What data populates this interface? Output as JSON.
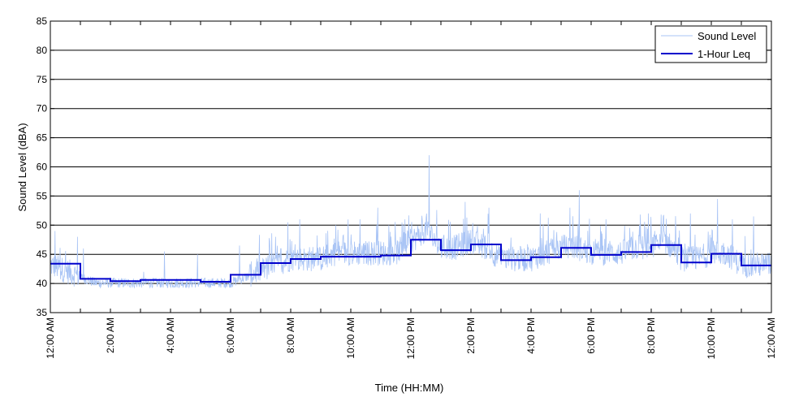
{
  "chart_data": {
    "type": "line",
    "title": "",
    "xlabel": "Time (HH:MM)",
    "ylabel": "Sound Level (dBA)",
    "ylim": [
      35,
      85
    ],
    "yticks": [
      35,
      40,
      45,
      50,
      55,
      60,
      65,
      70,
      75,
      80,
      85
    ],
    "xlim_hours": [
      0,
      24
    ],
    "xticks": [
      {
        "hour": 0,
        "label": "12:00 AM"
      },
      {
        "hour": 2,
        "label": "2:00 AM"
      },
      {
        "hour": 4,
        "label": "4:00 AM"
      },
      {
        "hour": 6,
        "label": "6:00 AM"
      },
      {
        "hour": 8,
        "label": "8:00 AM"
      },
      {
        "hour": 10,
        "label": "10:00 AM"
      },
      {
        "hour": 12,
        "label": "12:00 PM"
      },
      {
        "hour": 14,
        "label": "2:00 PM"
      },
      {
        "hour": 16,
        "label": "4:00 PM"
      },
      {
        "hour": 18,
        "label": "6:00 PM"
      },
      {
        "hour": 20,
        "label": "8:00 PM"
      },
      {
        "hour": 22,
        "label": "10:00 PM"
      },
      {
        "hour": 24,
        "label": "12:00 AM"
      }
    ],
    "grid": "horizontal",
    "legend_position": "top-right",
    "series": [
      {
        "name": "Sound Level",
        "color": "#a9c4f5",
        "x": [
          0,
          0.5,
          1,
          1.5,
          2,
          2.5,
          3,
          3.5,
          4,
          4.5,
          5,
          5.5,
          6,
          6.5,
          7,
          7.5,
          8,
          8.5,
          9,
          9.5,
          10,
          10.5,
          11,
          11.5,
          12,
          12.5,
          13,
          13.5,
          14,
          14.5,
          15,
          15.5,
          16,
          16.5,
          17,
          17.5,
          18,
          18.5,
          19,
          19.5,
          20,
          20.5,
          21,
          21.5,
          22,
          22.5,
          23,
          23.5,
          24
        ],
        "y": [
          43,
          42,
          41,
          40,
          40,
          40,
          40,
          40,
          40,
          40,
          40,
          40,
          40,
          41,
          42,
          43,
          44,
          44,
          44,
          45,
          45,
          45,
          45,
          45,
          47,
          49,
          46,
          46,
          47,
          46,
          44,
          44,
          44,
          45,
          46,
          46,
          45,
          45,
          45,
          46,
          46,
          47,
          44,
          44,
          45,
          45,
          43,
          43,
          43
        ],
        "peaks": [
          [
            0.15,
            49
          ],
          [
            0.9,
            48
          ],
          [
            1.1,
            46
          ],
          [
            3.1,
            42
          ],
          [
            3.8,
            45.5
          ],
          [
            4.9,
            45
          ],
          [
            6.3,
            46.5
          ],
          [
            7.5,
            48
          ],
          [
            7.9,
            50.5
          ],
          [
            8.3,
            51
          ],
          [
            9.5,
            50
          ],
          [
            10.3,
            51
          ],
          [
            10.9,
            53
          ],
          [
            11.8,
            51
          ],
          [
            12.6,
            62
          ],
          [
            13.8,
            54
          ],
          [
            14.6,
            53
          ],
          [
            16.3,
            52
          ],
          [
            17.3,
            53
          ],
          [
            17.6,
            56
          ],
          [
            18.5,
            51
          ],
          [
            19.9,
            52
          ],
          [
            20.4,
            51.5
          ],
          [
            21.3,
            52
          ],
          [
            22.2,
            54.5
          ],
          [
            22.7,
            51
          ],
          [
            23.4,
            51.5
          ]
        ]
      },
      {
        "name": "1-Hour Leq",
        "color": "#0000cc",
        "hours": [
          0,
          1,
          2,
          3,
          4,
          5,
          6,
          7,
          8,
          9,
          10,
          11,
          12,
          13,
          14,
          15,
          16,
          17,
          18,
          19,
          20,
          21,
          22,
          23
        ],
        "values": [
          43.4,
          40.8,
          40.4,
          40.6,
          40.6,
          40.3,
          41.5,
          43.5,
          44.2,
          44.6,
          44.6,
          44.8,
          47.5,
          45.7,
          46.7,
          44.0,
          44.5,
          46.1,
          44.9,
          45.4,
          46.6,
          43.6,
          45.1,
          43.1
        ]
      }
    ]
  }
}
